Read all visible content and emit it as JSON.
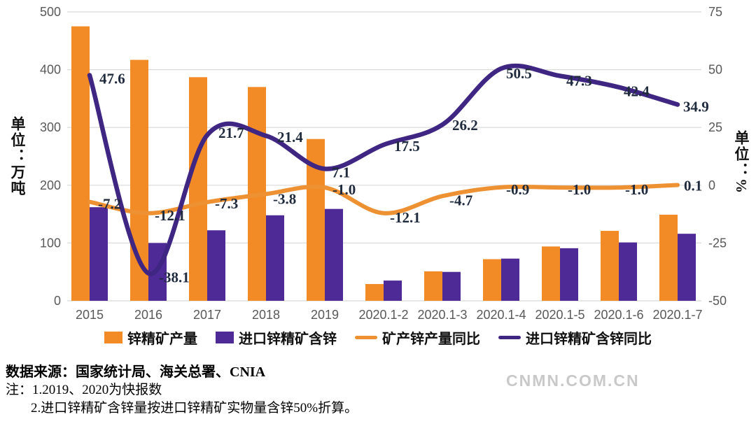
{
  "chart_data": {
    "type": "combo-bar-line",
    "categories": [
      "2015",
      "2016",
      "2017",
      "2018",
      "2019",
      "2020.1-2",
      "2020.1-3",
      "2020.1-4",
      "2020.1-5",
      "2020.1-6",
      "2020.1-7"
    ],
    "left_axis": {
      "unit_label": "单位：万吨",
      "min": 0,
      "max": 500,
      "step": 100,
      "ticks": [
        500,
        400,
        300,
        200,
        100,
        0
      ]
    },
    "right_axis": {
      "unit_label": "单位：%",
      "min": -50,
      "max": 75,
      "step": 25,
      "ticks": [
        75,
        50,
        25,
        0,
        -25,
        -50
      ]
    },
    "series": [
      {
        "name": "锌精矿产量",
        "type": "bar",
        "axis": "left",
        "color": "#F28A25",
        "values": [
          475,
          417,
          387,
          370,
          280,
          29,
          51,
          72,
          94,
          121,
          149
        ]
      },
      {
        "name": "进口锌精矿含锌",
        "type": "bar",
        "axis": "left",
        "color": "#4E2A96",
        "values": [
          162,
          100,
          122,
          148,
          159,
          35,
          50,
          73,
          91,
          101,
          116
        ]
      },
      {
        "name": "矿产锌产量同比",
        "type": "line",
        "axis": "right",
        "color": "#EE9133",
        "values": [
          -7.2,
          -12.1,
          -7.3,
          -3.8,
          -1.0,
          -12.1,
          -4.7,
          -0.9,
          -1.0,
          -1.0,
          0.1
        ],
        "labels": [
          "-7.2",
          "-12.1",
          "-7.3",
          "-3.8",
          "-1.0",
          "-12.1",
          "-4.7",
          "-0.9",
          "-1.0",
          "-1.0",
          "0.1"
        ]
      },
      {
        "name": "进口锌精矿含锌同比",
        "type": "line",
        "axis": "right",
        "color": "#3F2683",
        "values": [
          47.6,
          -38.1,
          21.7,
          21.4,
          7.1,
          17.5,
          26.2,
          50.5,
          47.3,
          42.4,
          34.9
        ],
        "labels": [
          "47.6",
          "-38.1",
          "21.7",
          "21.4",
          "7.1",
          "17.5",
          "26.2",
          "50.5",
          "47.3",
          "42.4",
          "34.9"
        ]
      }
    ],
    "styles": {
      "grid_color": "#d9d9d9",
      "tick_color": "#595959",
      "data_label_color": "#1f2b3d"
    },
    "grid": true,
    "legend_position": "bottom"
  },
  "legend": {
    "items": [
      {
        "label": "锌精矿产量",
        "marker": "square",
        "color": "#F28A25"
      },
      {
        "label": "进口锌精矿含锌",
        "marker": "square",
        "color": "#4E2A96"
      },
      {
        "label": "矿产锌产量同比",
        "marker": "line",
        "color": "#EE9133"
      },
      {
        "label": "进口锌精矿含锌同比",
        "marker": "line",
        "color": "#3F2683"
      }
    ]
  },
  "notes": {
    "source": "数据来源：国家统计局、海关总署、CNIA",
    "note1": "注：1.2019、2020为快报数",
    "note2": "2.进口锌精矿含锌量按进口锌精矿实物量含锌50%折算。"
  },
  "watermark": "CNMN.COM.CN"
}
